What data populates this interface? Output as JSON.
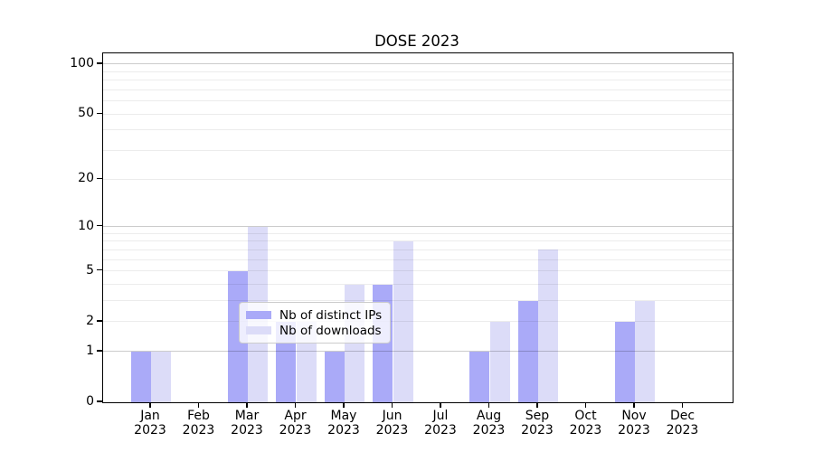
{
  "title": "DOSE 2023",
  "chart_data": {
    "type": "bar",
    "title": "DOSE 2023",
    "categories": [
      "Jan 2023",
      "Feb 2023",
      "Mar 2023",
      "Apr 2023",
      "May 2023",
      "Jun 2023",
      "Jul 2023",
      "Aug 2023",
      "Sep 2023",
      "Oct 2023",
      "Nov 2023",
      "Dec 2023"
    ],
    "series": [
      {
        "name": "Nb of distinct IPs",
        "color": "#aaaaf8",
        "values": [
          1,
          0,
          5,
          2,
          1,
          4,
          0,
          1,
          3,
          0,
          2,
          0
        ]
      },
      {
        "name": "Nb of downloads",
        "color": "#dcdcf8",
        "values": [
          1,
          0,
          10,
          2,
          4,
          8,
          0,
          2,
          7,
          0,
          3,
          0
        ]
      }
    ],
    "xlabel": "",
    "ylabel": "",
    "y_axis": {
      "scale": "log10(1+v)",
      "ticks": [
        0,
        1,
        2,
        5,
        10,
        20,
        50,
        100
      ],
      "top_value": 116,
      "grid_major": [
        1,
        10,
        100
      ],
      "grid_minor": [
        2,
        3,
        4,
        5,
        6,
        7,
        8,
        9,
        20,
        30,
        40,
        50,
        60,
        70,
        80,
        90
      ],
      "grid_major_color": "rgba(0,0,0,0.20)",
      "grid_minor_color": "rgba(0,0,0,0.075)"
    },
    "legend": {
      "position": "lower center",
      "entries": [
        "Nb of distinct IPs",
        "Nb of downloads"
      ]
    },
    "background_color": "#ffffff"
  }
}
